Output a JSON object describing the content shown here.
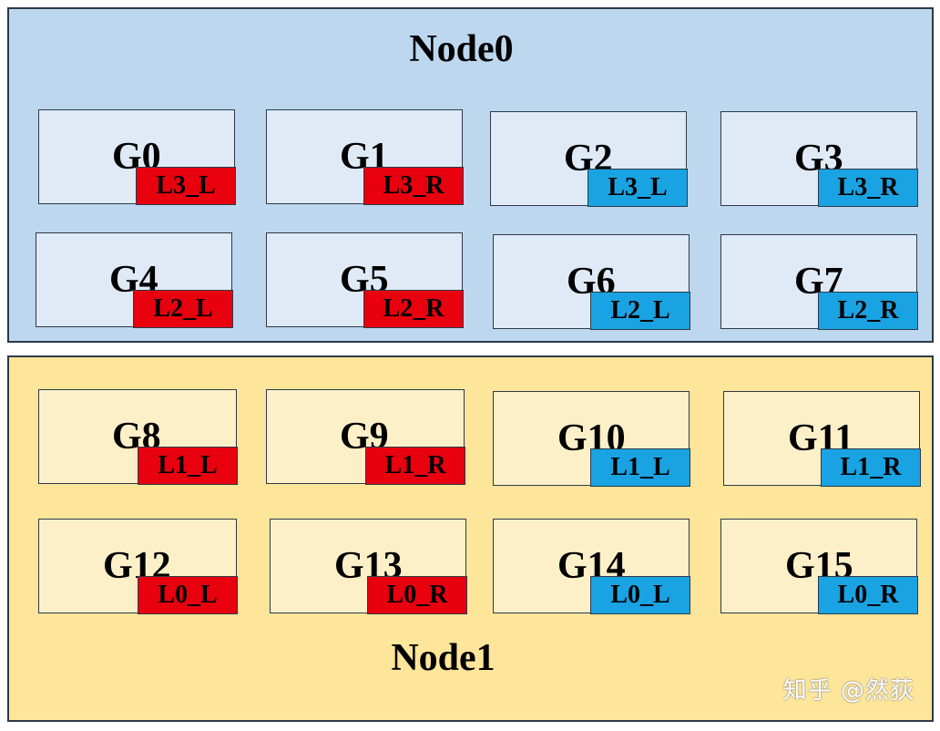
{
  "nodes": [
    {
      "title": "Node0",
      "gpus": [
        {
          "name": "G0",
          "tag": "L3_L",
          "color": "red"
        },
        {
          "name": "G1",
          "tag": "L3_R",
          "color": "red"
        },
        {
          "name": "G2",
          "tag": "L3_L",
          "color": "blue"
        },
        {
          "name": "G3",
          "tag": "L3_R",
          "color": "blue"
        },
        {
          "name": "G4",
          "tag": "L2_L",
          "color": "red"
        },
        {
          "name": "G5",
          "tag": "L2_R",
          "color": "red"
        },
        {
          "name": "G6",
          "tag": "L2_L",
          "color": "blue"
        },
        {
          "name": "G7",
          "tag": "L2_R",
          "color": "blue"
        }
      ]
    },
    {
      "title": "Node1",
      "gpus": [
        {
          "name": "G8",
          "tag": "L1_L",
          "color": "red"
        },
        {
          "name": "G9",
          "tag": "L1_R",
          "color": "red"
        },
        {
          "name": "G10",
          "tag": "L1_L",
          "color": "blue"
        },
        {
          "name": "G11",
          "tag": "L1_R",
          "color": "blue"
        },
        {
          "name": "G12",
          "tag": "L0_L",
          "color": "red"
        },
        {
          "name": "G13",
          "tag": "L0_R",
          "color": "red"
        },
        {
          "name": "G14",
          "tag": "L0_L",
          "color": "blue"
        },
        {
          "name": "G15",
          "tag": "L0_R",
          "color": "blue"
        }
      ]
    }
  ],
  "colors": {
    "red": "#e8000f",
    "blue": "#19a3e3",
    "node0_bg": "#bdd7ee",
    "node1_bg": "#fde59a"
  },
  "watermark": "知乎 @然荻"
}
